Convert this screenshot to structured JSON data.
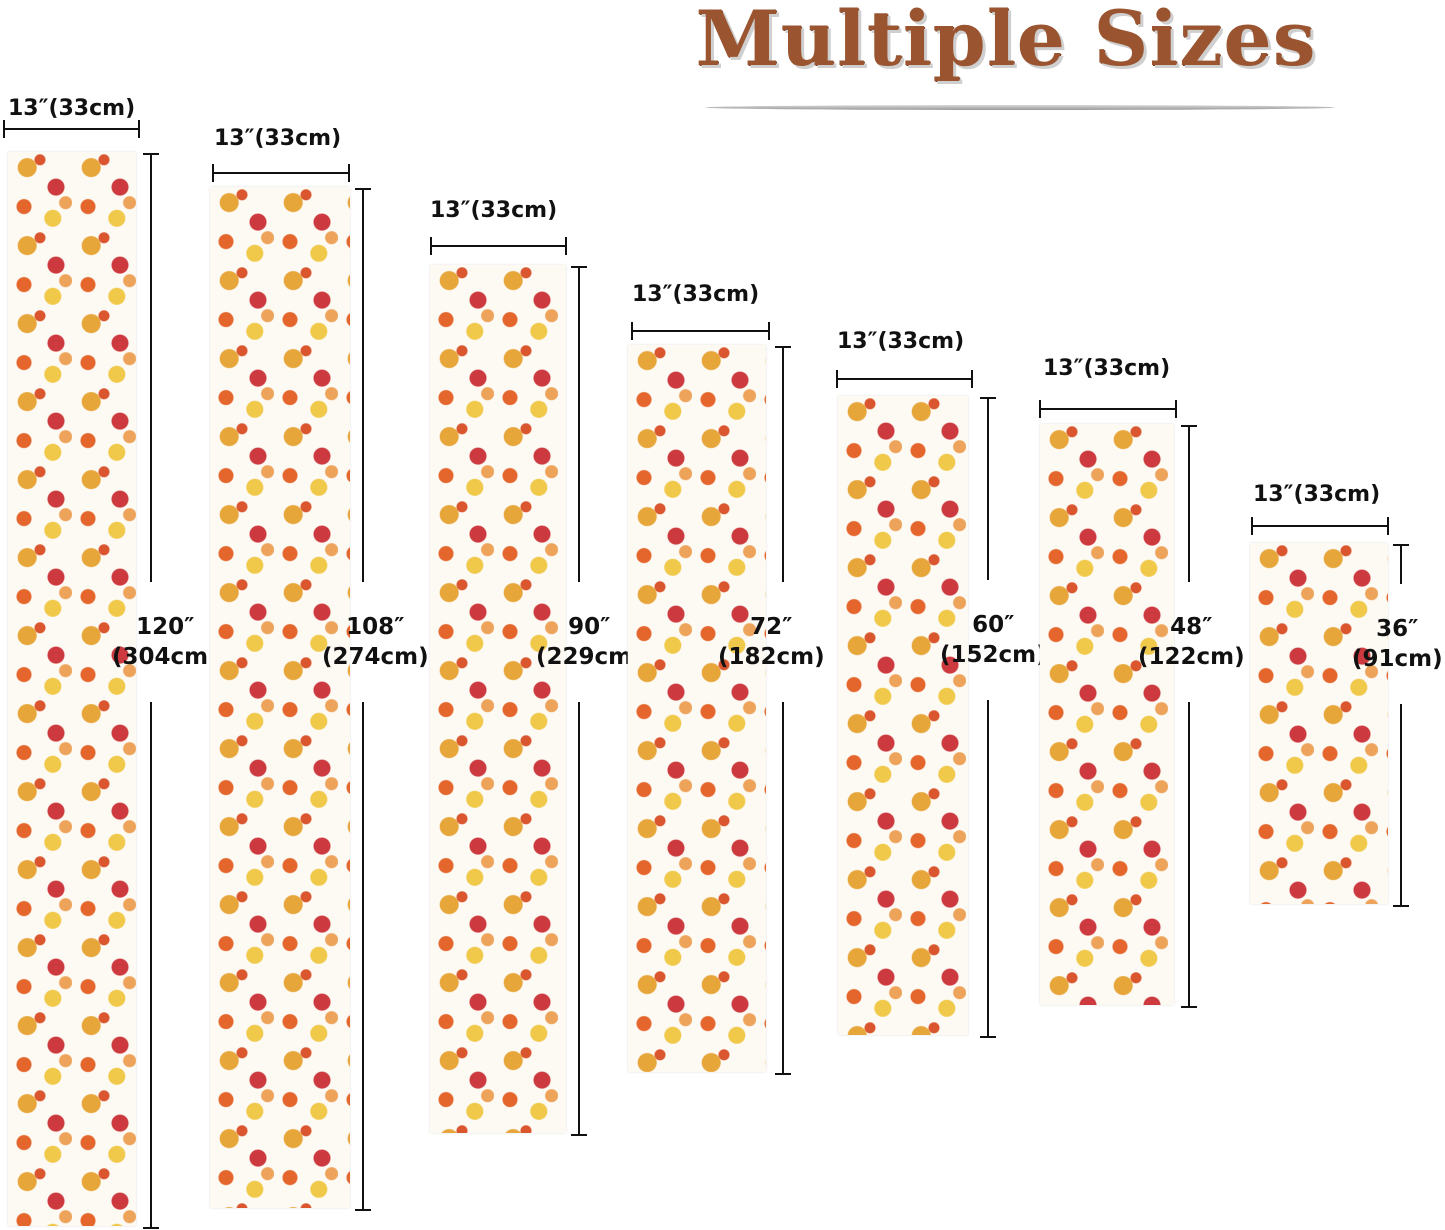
{
  "title": "Multiple Sizes",
  "sizes": [
    {
      "width": "13″(33cm)",
      "length_in": "120″",
      "length_cm": "(304cm)"
    },
    {
      "width": "13″(33cm)",
      "length_in": "108″",
      "length_cm": "(274cm)"
    },
    {
      "width": "13″(33cm)",
      "length_in": "90″",
      "length_cm": "(229cm)"
    },
    {
      "width": "13″(33cm)",
      "length_in": "72″",
      "length_cm": "(182cm)"
    },
    {
      "width": "13″(33cm)",
      "length_in": "60″",
      "length_cm": "(152cm)"
    },
    {
      "width": "13″(33cm)",
      "length_in": "48″",
      "length_cm": "(122cm)"
    },
    {
      "width": "13″(33cm)",
      "length_in": "36″",
      "length_cm": "(91cm)"
    }
  ],
  "colors": {
    "title": "#9a5530",
    "pattern": [
      "#e7a63a",
      "#cc3a3f",
      "#e4662c",
      "#f0c94a"
    ]
  }
}
